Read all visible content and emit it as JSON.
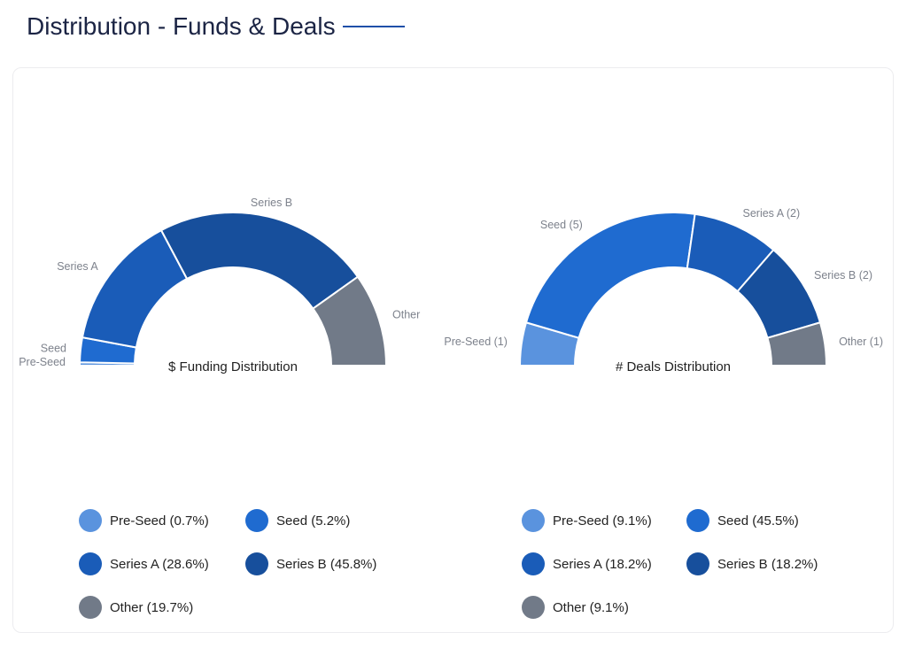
{
  "header": {
    "title": "Distribution - Funds & Deals"
  },
  "chart_data": [
    {
      "type": "pie",
      "variant": "semi-donut",
      "title": "$ Funding Distribution",
      "categories": [
        "Pre-Seed",
        "Seed",
        "Series A",
        "Series B",
        "Other"
      ],
      "slice_labels": [
        "Pre-Seed",
        "Seed",
        "Series A",
        "Series B",
        "Other"
      ],
      "values": [
        0.7,
        5.2,
        28.6,
        45.8,
        19.7
      ],
      "unit": "%",
      "legend": [
        "Pre-Seed (0.7%)",
        "Seed (5.2%)",
        "Series A (28.6%)",
        "Series B (45.8%)",
        "Other (19.7%)"
      ],
      "legend_placement": "bottom",
      "colors": [
        "#5a93de",
        "#1f6bd0",
        "#1a5cb8",
        "#174f9c",
        "#717a88"
      ]
    },
    {
      "type": "pie",
      "variant": "semi-donut",
      "title": "# Deals Distribution",
      "categories": [
        "Pre-Seed",
        "Seed",
        "Series A",
        "Series B",
        "Other"
      ],
      "slice_labels": [
        "Pre-Seed (1)",
        "Seed (5)",
        "Series A (2)",
        "Series B (2)",
        "Other (1)"
      ],
      "values": [
        1,
        5,
        2,
        2,
        1
      ],
      "percentages": [
        9.1,
        45.5,
        18.2,
        18.2,
        9.1
      ],
      "legend": [
        "Pre-Seed (9.1%)",
        "Seed (45.5%)",
        "Series A (18.2%)",
        "Series B (18.2%)",
        "Other (9.1%)"
      ],
      "legend_placement": "bottom",
      "colors": [
        "#5a93de",
        "#1f6bd0",
        "#1a5cb8",
        "#174f9c",
        "#717a88"
      ]
    }
  ]
}
